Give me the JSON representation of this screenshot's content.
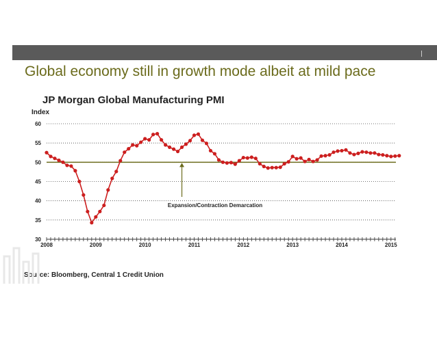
{
  "slide": {
    "title": "Global economy still in growth mode albeit at mild pace",
    "source": "Source: Bloomberg, Central 1 Credit Union"
  },
  "colors": {
    "series": "#cc1f1f",
    "threshold": "#6b6b1c",
    "title": "#6b6b1c",
    "bar": "#5a5a5a"
  },
  "chart_data": {
    "type": "line",
    "title": "JP Morgan Global Manufacturing PMI",
    "ylabel": "Index",
    "xlabel": "",
    "ylim": [
      30,
      60
    ],
    "yticks": [
      30,
      35,
      40,
      45,
      50,
      55,
      60
    ],
    "xlim": [
      2008.0,
      2015.1
    ],
    "xticks": [
      "2008",
      "2009",
      "2010",
      "2011",
      "2012",
      "2013",
      "2014",
      "2015"
    ],
    "grid": "horizontal dotted",
    "threshold": 50,
    "annotation": "Expansion/Contraction Demarcation",
    "series": [
      {
        "name": "",
        "x_start": "2008-01",
        "x_step": "monthly",
        "values": [
          52.5,
          51.5,
          51.0,
          50.5,
          50.0,
          49.2,
          49.0,
          47.8,
          45.0,
          41.5,
          37.2,
          34.3,
          35.8,
          37.2,
          38.8,
          42.8,
          45.8,
          47.6,
          50.4,
          52.6,
          53.5,
          54.5,
          54.3,
          55.2,
          56.1,
          55.8,
          57.2,
          57.4,
          55.8,
          54.5,
          53.9,
          53.4,
          52.8,
          53.9,
          54.7,
          55.6,
          57.0,
          57.3,
          55.7,
          54.9,
          53.0,
          52.2,
          50.6,
          50.0,
          49.8,
          49.9,
          49.5,
          50.4,
          51.2,
          51.1,
          51.3,
          51.0,
          49.6,
          48.9,
          48.5,
          48.6,
          48.6,
          48.7,
          49.6,
          50.1,
          51.5,
          50.9,
          51.1,
          50.2,
          50.7,
          50.2,
          50.6,
          51.6,
          51.7,
          51.9,
          52.6,
          52.9,
          53.0,
          53.2,
          52.4,
          52.0,
          52.3,
          52.7,
          52.6,
          52.4,
          52.4,
          52.0,
          51.9,
          51.7,
          51.5,
          51.6,
          51.7
        ]
      }
    ]
  }
}
